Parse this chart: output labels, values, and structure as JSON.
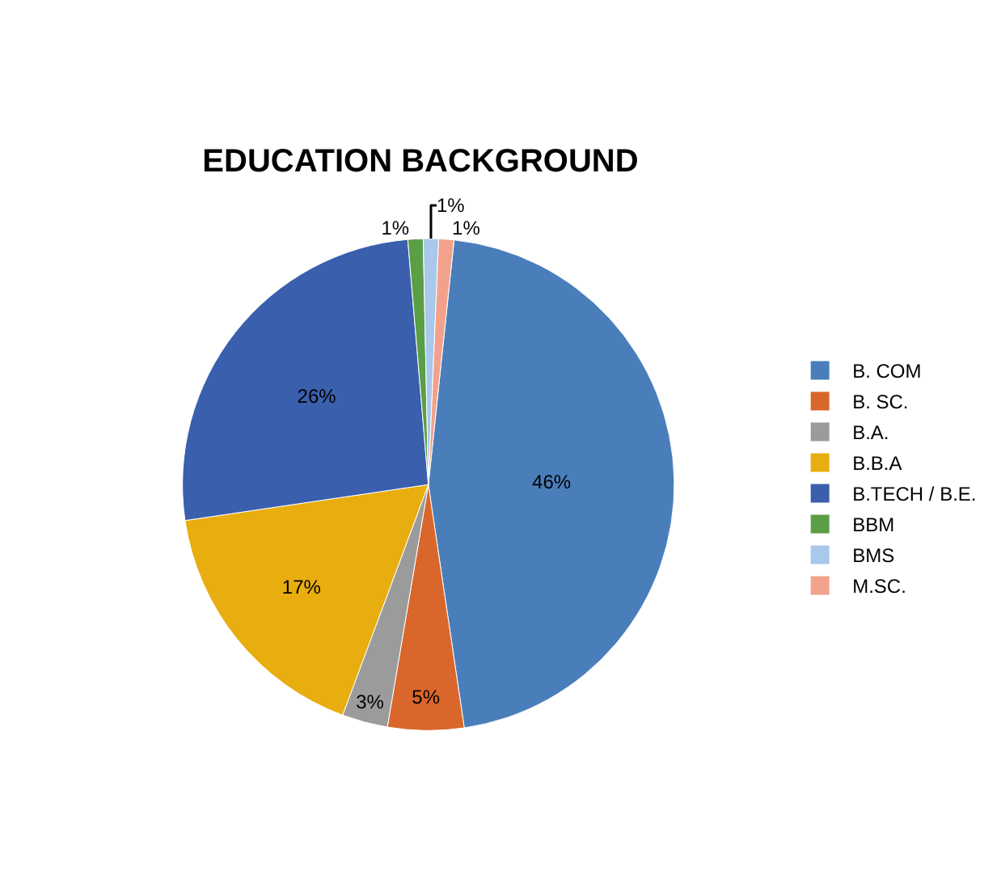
{
  "chart_data": {
    "type": "pie",
    "title": "EDUCATION BACKGROUND",
    "categories": [
      "B. COM",
      "B. SC.",
      "B.A.",
      "B.B.A",
      "B.TECH / B.E.",
      "BBM",
      "BMS",
      "M.SC."
    ],
    "values": [
      46,
      5,
      3,
      17,
      26,
      1,
      1,
      1
    ],
    "colors": [
      "#4a7ebb",
      "#d9662a",
      "#9b9b9b",
      "#e8ad0e",
      "#3a5fad",
      "#5a9e46",
      "#a8c8ec",
      "#f2a28c"
    ],
    "value_labels": [
      "46%",
      "5%",
      "3%",
      "17%",
      "26%",
      "1%",
      "1%",
      "1%"
    ],
    "legend": "right"
  }
}
